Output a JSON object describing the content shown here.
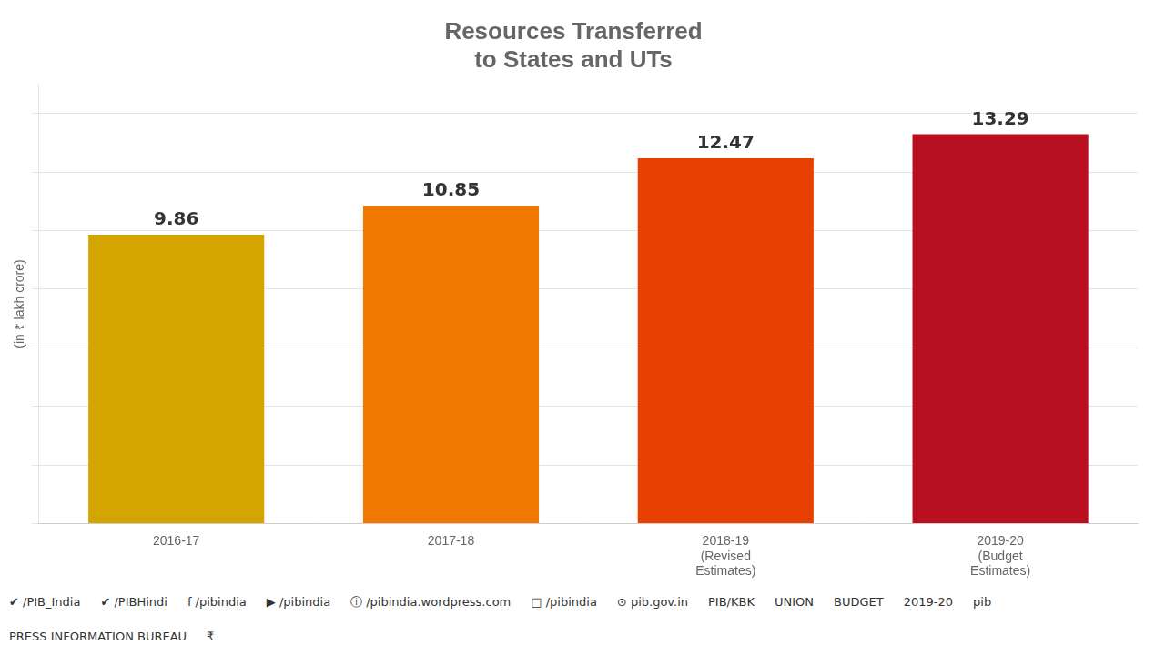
{
  "chart_data": {
    "type": "bar",
    "title": "Resources Transferred\nto States and UTs",
    "ylabel": "(in ₹ lakh crore)",
    "categories": [
      "2016-17",
      "2017-18",
      "2018-19\n(Revised\nEstimates)",
      "2019-20\n(Budget\nEstimates)"
    ],
    "values": [
      9.86,
      10.85,
      12.47,
      13.29
    ],
    "colors": [
      "#D4A500",
      "#F07800",
      "#E84000",
      "#B81020"
    ],
    "ylim": [
      0,
      15
    ],
    "yticks": [
      0,
      2,
      4,
      6,
      8,
      10,
      12,
      14
    ],
    "grid": true,
    "data_labels": true,
    "tick_labels": "x",
    "annotations": [
      "✔ /PIB_India",
      "✔ /PIBHindi",
      "f  /pibindia",
      "▶ /pibindia",
      "ⓘ /pibindia.wordpress.com",
      "□ /pibindia",
      "⊙ pib.gov.in",
      "PIB/KBK",
      "UNION",
      "BUDGET",
      "2019-20",
      "pib",
      "PRESS INFORMATION BUREAU",
      "₹"
    ]
  }
}
